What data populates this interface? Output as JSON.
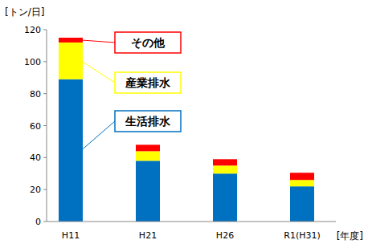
{
  "chart_data": {
    "type": "bar",
    "stacked": true,
    "grid": false,
    "y_label": "[トン/日]",
    "x_label": "[年度]",
    "categories": [
      "H11",
      "H21",
      "H26",
      "R1(H31)"
    ],
    "series": [
      {
        "name": "生活排水",
        "color": "#0070c0",
        "values": [
          89,
          38,
          30,
          22
        ]
      },
      {
        "name": "産業排水",
        "color": "#ffff00",
        "values": [
          23,
          6,
          5,
          4
        ]
      },
      {
        "name": "その他",
        "color": "#ff0000",
        "values": [
          3,
          4,
          4,
          4.5
        ]
      }
    ],
    "ylim": [
      0,
      120
    ],
    "yticks": [
      0,
      20,
      40,
      60,
      80,
      100,
      120
    ]
  }
}
